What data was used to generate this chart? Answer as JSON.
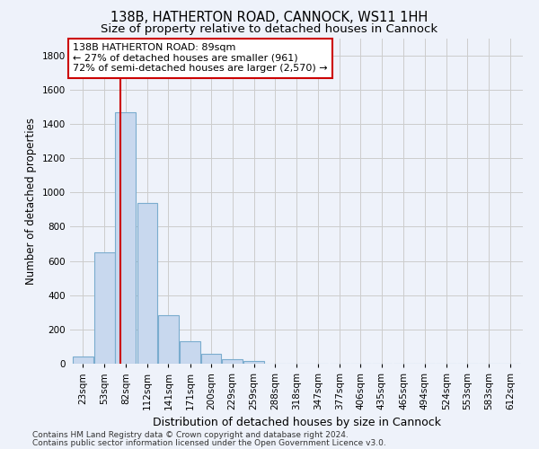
{
  "title_line1": "138B, HATHERTON ROAD, CANNOCK, WS11 1HH",
  "title_line2": "Size of property relative to detached houses in Cannock",
  "xlabel": "Distribution of detached houses by size in Cannock",
  "ylabel": "Number of detached properties",
  "bin_labels": [
    "23sqm",
    "53sqm",
    "82sqm",
    "112sqm",
    "141sqm",
    "171sqm",
    "200sqm",
    "229sqm",
    "259sqm",
    "288sqm",
    "318sqm",
    "347sqm",
    "377sqm",
    "406sqm",
    "435sqm",
    "465sqm",
    "494sqm",
    "524sqm",
    "553sqm",
    "583sqm",
    "612sqm"
  ],
  "bin_starts": [
    23,
    53,
    82,
    112,
    141,
    171,
    200,
    229,
    259,
    288,
    318,
    347,
    377,
    406,
    435,
    465,
    494,
    524,
    553,
    583,
    612
  ],
  "bin_width": 29,
  "bar_heights": [
    40,
    650,
    1470,
    940,
    285,
    130,
    60,
    25,
    15,
    0,
    0,
    0,
    0,
    0,
    0,
    0,
    0,
    0,
    0,
    0,
    0
  ],
  "bar_color": "#c8d8ee",
  "bar_edge_color": "#7aacce",
  "property_value": 89,
  "vline_color": "#cc0000",
  "annotation_text": "138B HATHERTON ROAD: 89sqm\n← 27% of detached houses are smaller (961)\n72% of semi-detached houses are larger (2,570) →",
  "annotation_box_facecolor": "#ffffff",
  "annotation_box_edgecolor": "#cc0000",
  "ylim": [
    0,
    1900
  ],
  "yticks": [
    0,
    200,
    400,
    600,
    800,
    1000,
    1200,
    1400,
    1600,
    1800
  ],
  "grid_color": "#cccccc",
  "background_color": "#eef2fa",
  "footer_line1": "Contains HM Land Registry data © Crown copyright and database right 2024.",
  "footer_line2": "Contains public sector information licensed under the Open Government Licence v3.0.",
  "title_fontsize": 10.5,
  "subtitle_fontsize": 9.5,
  "ylabel_fontsize": 8.5,
  "xlabel_fontsize": 9,
  "tick_fontsize": 7.5,
  "annotation_fontsize": 8,
  "footer_fontsize": 6.5
}
